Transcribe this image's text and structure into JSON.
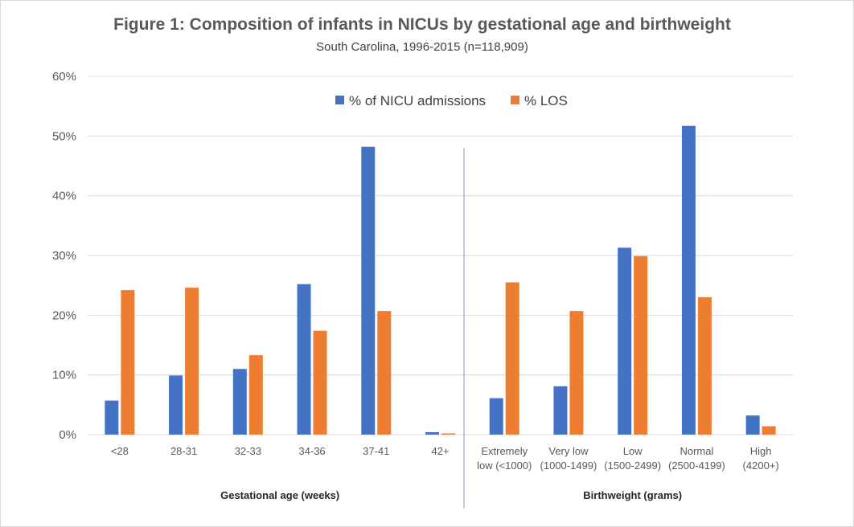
{
  "chart_data": {
    "type": "bar",
    "title": "Figure 1: Composition of infants in NICUs by gestational age and birthweight",
    "subtitle": "South Carolina, 1996-2015 (n=118,909)",
    "y_ticks": [
      "0%",
      "10%",
      "20%",
      "30%",
      "40%",
      "50%",
      "60%"
    ],
    "ylim": [
      0,
      60
    ],
    "grid": true,
    "legend": "top-center",
    "colors": {
      "admissions": "#4472c4",
      "los": "#ed7d31",
      "grid": "#d9d9d9",
      "divider": "#8497b0"
    },
    "groups": [
      {
        "label": "Gestational age (weeks)",
        "categories": [
          {
            "label": [
              "<28"
            ],
            "admissions": 5.7,
            "los": 24.2
          },
          {
            "label": [
              "28-31"
            ],
            "admissions": 9.9,
            "los": 24.6
          },
          {
            "label": [
              "32-33"
            ],
            "admissions": 11.0,
            "los": 13.3
          },
          {
            "label": [
              "34-36"
            ],
            "admissions": 25.2,
            "los": 17.4
          },
          {
            "label": [
              "37-41"
            ],
            "admissions": 48.2,
            "los": 20.7
          },
          {
            "label": [
              "42+"
            ],
            "admissions": 0.4,
            "los": 0.2
          }
        ]
      },
      {
        "label": "Birthweight (grams)",
        "categories": [
          {
            "label": [
              "Extremely",
              "low (<1000)"
            ],
            "admissions": 6.1,
            "los": 25.5
          },
          {
            "label": [
              "Very low",
              "(1000-1499)"
            ],
            "admissions": 8.1,
            "los": 20.7
          },
          {
            "label": [
              "Low",
              "(1500-2499)"
            ],
            "admissions": 31.3,
            "los": 29.9
          },
          {
            "label": [
              "Normal",
              "(2500-4199)"
            ],
            "admissions": 51.7,
            "los": 23.0
          },
          {
            "label": [
              "High",
              "(4200+)"
            ],
            "admissions": 3.2,
            "los": 1.4
          }
        ]
      }
    ],
    "series": [
      {
        "key": "admissions",
        "name": "% of NICU admissions"
      },
      {
        "key": "los",
        "name": "% LOS"
      }
    ]
  }
}
